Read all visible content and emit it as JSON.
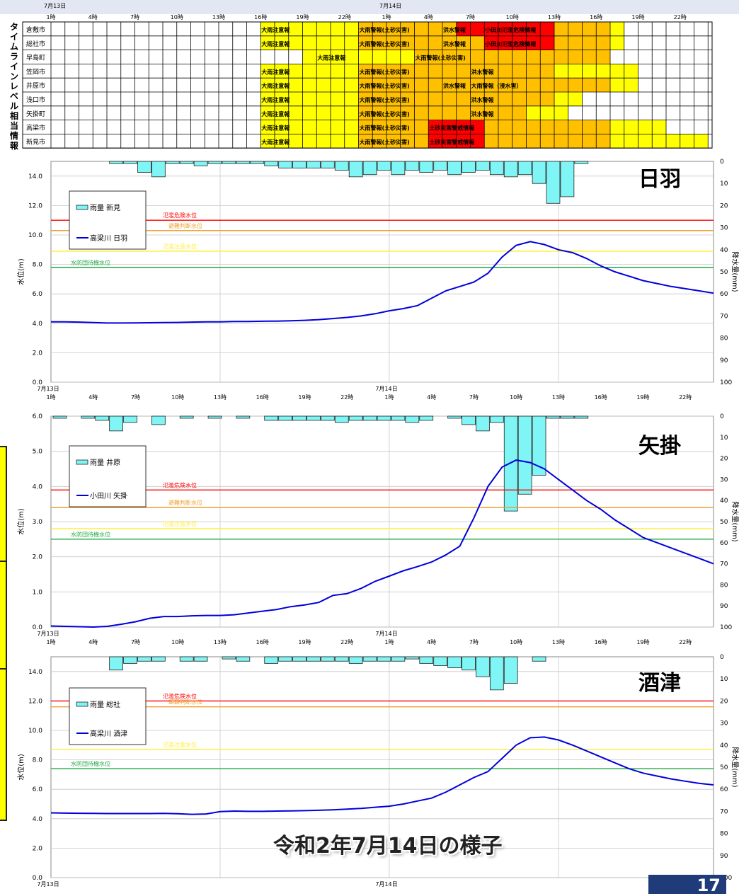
{
  "caption": "令和2年7月14日の様子",
  "page_number": "17",
  "colors": {
    "yellow": "#ffff00",
    "orange": "#ffc000",
    "red": "#ff0000",
    "rain_fill": "#7ff5f5",
    "level_line": "#0000dd",
    "danger": "#ff0000",
    "evac": "#f0a030",
    "caution": "#ffee33",
    "standby": "#22aa44"
  },
  "timeline": {
    "side_label": "タイムラインレベル相当情報",
    "date_labels": [
      "7月13日",
      "7月14日"
    ],
    "hour_labels": [
      "1時",
      "4時",
      "7時",
      "10時",
      "13時",
      "16時",
      "19時",
      "22時",
      "1時",
      "4時",
      "7時",
      "10時",
      "13時",
      "16時",
      "19時",
      "22時"
    ],
    "rows": [
      {
        "city": "倉敷市",
        "segments": [
          [
            15,
            22,
            "Y"
          ],
          [
            22,
            29,
            "O"
          ],
          [
            29,
            36,
            "R"
          ],
          [
            36,
            40,
            "O"
          ],
          [
            40,
            41,
            "Y"
          ]
        ],
        "labels": [
          [
            15,
            "大雨注意報"
          ],
          [
            22,
            "大雨警報(土砂災害)"
          ],
          [
            28,
            "洪水警報"
          ],
          [
            31,
            "小田川氾濫危険情報"
          ]
        ]
      },
      {
        "city": "総社市",
        "segments": [
          [
            15,
            22,
            "Y"
          ],
          [
            22,
            31,
            "O"
          ],
          [
            31,
            36,
            "R"
          ],
          [
            36,
            40,
            "O"
          ],
          [
            40,
            41,
            "Y"
          ]
        ],
        "labels": [
          [
            15,
            "大雨注意報"
          ],
          [
            22,
            "大雨警報(土砂災害)"
          ],
          [
            28,
            "洪水警報"
          ],
          [
            31,
            "小田川氾濫危険情報"
          ]
        ]
      },
      {
        "city": "早島町",
        "segments": [
          [
            18,
            26,
            "Y"
          ],
          [
            26,
            40,
            "O"
          ]
        ],
        "labels": [
          [
            19,
            "大雨注意報"
          ],
          [
            26,
            "大雨警報(土砂災害)"
          ]
        ]
      },
      {
        "city": "笠岡市",
        "segments": [
          [
            15,
            22,
            "Y"
          ],
          [
            22,
            36,
            "O"
          ],
          [
            36,
            42,
            "Y"
          ]
        ],
        "labels": [
          [
            15,
            "大雨注意報"
          ],
          [
            22,
            "大雨警報(土砂災害)"
          ],
          [
            30,
            "洪水警報"
          ]
        ]
      },
      {
        "city": "井原市",
        "segments": [
          [
            15,
            22,
            "Y"
          ],
          [
            22,
            40,
            "O"
          ],
          [
            40,
            42,
            "Y"
          ]
        ],
        "labels": [
          [
            15,
            "大雨注意報"
          ],
          [
            22,
            "大雨警報(土砂災害)"
          ],
          [
            28,
            "洪水警報"
          ],
          [
            30,
            "大雨警報（浸水害）"
          ]
        ]
      },
      {
        "city": "浅口市",
        "segments": [
          [
            15,
            22,
            "Y"
          ],
          [
            22,
            36,
            "O"
          ],
          [
            36,
            38,
            "Y"
          ]
        ],
        "labels": [
          [
            15,
            "大雨注意報"
          ],
          [
            22,
            "大雨警報(土砂災害)"
          ],
          [
            30,
            "洪水警報"
          ]
        ]
      },
      {
        "city": "矢掛町",
        "segments": [
          [
            15,
            22,
            "Y"
          ],
          [
            22,
            34,
            "O"
          ],
          [
            34,
            37,
            "Y"
          ]
        ],
        "labels": [
          [
            15,
            "大雨注意報"
          ],
          [
            22,
            "大雨警報(土砂災害)"
          ],
          [
            30,
            "洪水警報"
          ]
        ]
      },
      {
        "city": "高梁市",
        "segments": [
          [
            15,
            22,
            "Y"
          ],
          [
            22,
            27,
            "O"
          ],
          [
            27,
            31,
            "R"
          ],
          [
            31,
            40,
            "O"
          ],
          [
            40,
            44,
            "Y"
          ]
        ],
        "labels": [
          [
            15,
            "大雨注意報"
          ],
          [
            22,
            "大雨警報(土砂災害)"
          ],
          [
            27,
            "土砂災害警戒情報"
          ]
        ]
      },
      {
        "city": "新見市",
        "segments": [
          [
            15,
            22,
            "Y"
          ],
          [
            22,
            27,
            "O"
          ],
          [
            27,
            31,
            "R"
          ],
          [
            31,
            40,
            "O"
          ],
          [
            40,
            47,
            "Y"
          ]
        ],
        "labels": [
          [
            15,
            "大雨注意報"
          ],
          [
            22,
            "大雨警報(土砂災害)"
          ],
          [
            27,
            "土砂災害警戒情報"
          ]
        ]
      }
    ]
  },
  "chart_data": [
    {
      "type": "line",
      "title": "日羽",
      "ylabel": "水位(m)",
      "y2label": "降水量(mm)",
      "ylim": [
        0,
        15
      ],
      "yticks": [
        0.0,
        2.0,
        4.0,
        6.0,
        8.0,
        10.0,
        12.0,
        14.0
      ],
      "y2lim": [
        0,
        100
      ],
      "y2ticks": [
        0,
        10,
        20,
        30,
        40,
        50,
        60,
        70,
        80,
        90,
        100
      ],
      "date_labels": [
        "7月13日",
        "7月14日"
      ],
      "hour_labels": [
        "1時",
        "4時",
        "7時",
        "10時",
        "13時",
        "16時",
        "19時",
        "22時",
        "1時",
        "4時",
        "7時",
        "10時",
        "13時",
        "16時",
        "19時",
        "22時"
      ],
      "legend": [
        "雨量 新見",
        "高梁川 日羽"
      ],
      "thresholds": [
        {
          "name": "氾濫危険水位",
          "value": 11.0,
          "color": "#ff0000"
        },
        {
          "name": "避難判断水位",
          "value": 10.3,
          "color": "#f0a030"
        },
        {
          "name": "氾濫注意水位",
          "value": 8.9,
          "color": "#ffee33"
        },
        {
          "name": "水防団待機水位",
          "value": 7.8,
          "color": "#22aa44"
        }
      ],
      "rain": [
        0,
        0,
        0,
        0,
        1,
        1,
        5,
        7,
        1,
        1,
        2,
        1,
        1,
        1,
        1,
        2,
        3,
        3,
        3,
        3,
        4,
        7,
        6,
        4,
        6,
        4,
        5,
        4,
        6,
        5,
        4,
        6,
        7,
        6,
        10,
        19,
        16,
        1,
        0,
        0,
        0,
        0,
        0,
        0,
        0,
        0,
        0,
        0
      ],
      "level": [
        4.1,
        4.1,
        4.08,
        4.05,
        4.02,
        4.02,
        4.03,
        4.04,
        4.05,
        4.06,
        4.08,
        4.1,
        4.1,
        4.12,
        4.12,
        4.14,
        4.15,
        4.17,
        4.2,
        4.25,
        4.32,
        4.4,
        4.5,
        4.65,
        4.85,
        5.0,
        5.2,
        5.7,
        6.2,
        6.5,
        6.8,
        7.4,
        8.5,
        9.3,
        9.55,
        9.35,
        9.0,
        8.8,
        8.4,
        7.9,
        7.5,
        7.2,
        6.9,
        6.7,
        6.5,
        6.35,
        6.2,
        6.05
      ]
    },
    {
      "type": "line",
      "title": "矢掛",
      "ylabel": "水位(m)",
      "y2label": "降水量(mm)",
      "ylim": [
        0,
        6
      ],
      "yticks": [
        0.0,
        1.0,
        2.0,
        3.0,
        4.0,
        5.0,
        6.0
      ],
      "y2lim": [
        0,
        100
      ],
      "y2ticks": [
        0,
        10,
        20,
        30,
        40,
        50,
        60,
        70,
        80,
        90,
        100
      ],
      "date_labels": [
        "7月13日",
        "7月14日"
      ],
      "hour_labels": [
        "1時",
        "4時",
        "7時",
        "10時",
        "13時",
        "16時",
        "19時",
        "22時",
        "1時",
        "4時",
        "7時",
        "10時",
        "13時",
        "16時",
        "19時",
        "22時"
      ],
      "legend": [
        "雨量 井原",
        "小田川 矢掛"
      ],
      "thresholds": [
        {
          "name": "氾濫危険水位",
          "value": 3.9,
          "color": "#ff0000"
        },
        {
          "name": "避難判断水位",
          "value": 3.4,
          "color": "#f0a030"
        },
        {
          "name": "氾濫注意水位",
          "value": 2.8,
          "color": "#ffee33"
        },
        {
          "name": "水防団待機水位",
          "value": 2.5,
          "color": "#22aa44"
        }
      ],
      "rain": [
        1,
        0,
        1,
        2,
        7,
        3,
        0,
        4,
        0,
        1,
        0,
        1,
        0,
        1,
        0,
        2,
        2,
        2,
        2,
        2,
        3,
        2,
        2,
        2,
        2,
        3,
        2,
        0,
        1,
        4,
        7,
        3,
        45,
        37,
        28,
        1,
        1,
        1,
        0,
        0,
        0,
        0,
        0,
        0,
        0,
        0,
        0,
        0
      ],
      "level": [
        0.03,
        0.02,
        0.01,
        0.0,
        0.02,
        0.08,
        0.15,
        0.25,
        0.3,
        0.3,
        0.32,
        0.33,
        0.33,
        0.35,
        0.4,
        0.45,
        0.5,
        0.58,
        0.63,
        0.7,
        0.9,
        0.95,
        1.1,
        1.3,
        1.45,
        1.6,
        1.72,
        1.85,
        2.05,
        2.3,
        3.1,
        4.0,
        4.55,
        4.75,
        4.68,
        4.5,
        4.2,
        3.9,
        3.6,
        3.35,
        3.05,
        2.8,
        2.55,
        2.4,
        2.25,
        2.1,
        1.95,
        1.8
      ]
    },
    {
      "type": "line",
      "title": "酒津",
      "ylabel": "水位(m)",
      "y2label": "降水量(mm)",
      "ylim": [
        0,
        15
      ],
      "yticks": [
        0.0,
        2.0,
        4.0,
        6.0,
        8.0,
        10.0,
        12.0,
        14.0
      ],
      "y2lim": [
        0,
        100
      ],
      "y2ticks": [
        0,
        10,
        20,
        30,
        40,
        50,
        60,
        70,
        80,
        90,
        100
      ],
      "date_labels": [
        "7月13日",
        "7月14日"
      ],
      "hour_labels": [],
      "legend": [
        "雨量 総社",
        "高梁川 酒津"
      ],
      "thresholds": [
        {
          "name": "氾濫危険水位",
          "value": 12.0,
          "color": "#ff0000"
        },
        {
          "name": "避難判断水位",
          "value": 11.6,
          "color": "#f0a030"
        },
        {
          "name": "氾濫注意水位",
          "value": 8.7,
          "color": "#ffee33"
        },
        {
          "name": "水防団待機水位",
          "value": 7.4,
          "color": "#22aa44"
        }
      ],
      "rain": [
        0,
        0,
        0,
        0,
        6,
        3,
        2,
        2,
        0,
        2,
        2,
        0,
        1,
        2,
        0,
        3,
        2,
        2,
        2,
        2,
        2,
        3,
        2,
        2,
        2,
        1,
        3,
        4,
        5,
        6,
        9,
        15,
        12,
        0,
        2,
        0,
        0,
        0,
        0,
        0,
        0,
        0,
        0,
        0,
        0,
        0,
        0,
        0
      ],
      "level": [
        4.4,
        4.38,
        4.37,
        4.36,
        4.35,
        4.35,
        4.35,
        4.35,
        4.36,
        4.34,
        4.3,
        4.32,
        4.48,
        4.52,
        4.5,
        4.5,
        4.52,
        4.53,
        4.55,
        4.57,
        4.6,
        4.65,
        4.7,
        4.78,
        4.85,
        5.0,
        5.2,
        5.4,
        5.8,
        6.3,
        6.8,
        7.2,
        8.1,
        9.0,
        9.5,
        9.55,
        9.35,
        9.0,
        8.6,
        8.2,
        7.8,
        7.4,
        7.1,
        6.9,
        6.7,
        6.55,
        6.4,
        6.3
      ]
    }
  ]
}
